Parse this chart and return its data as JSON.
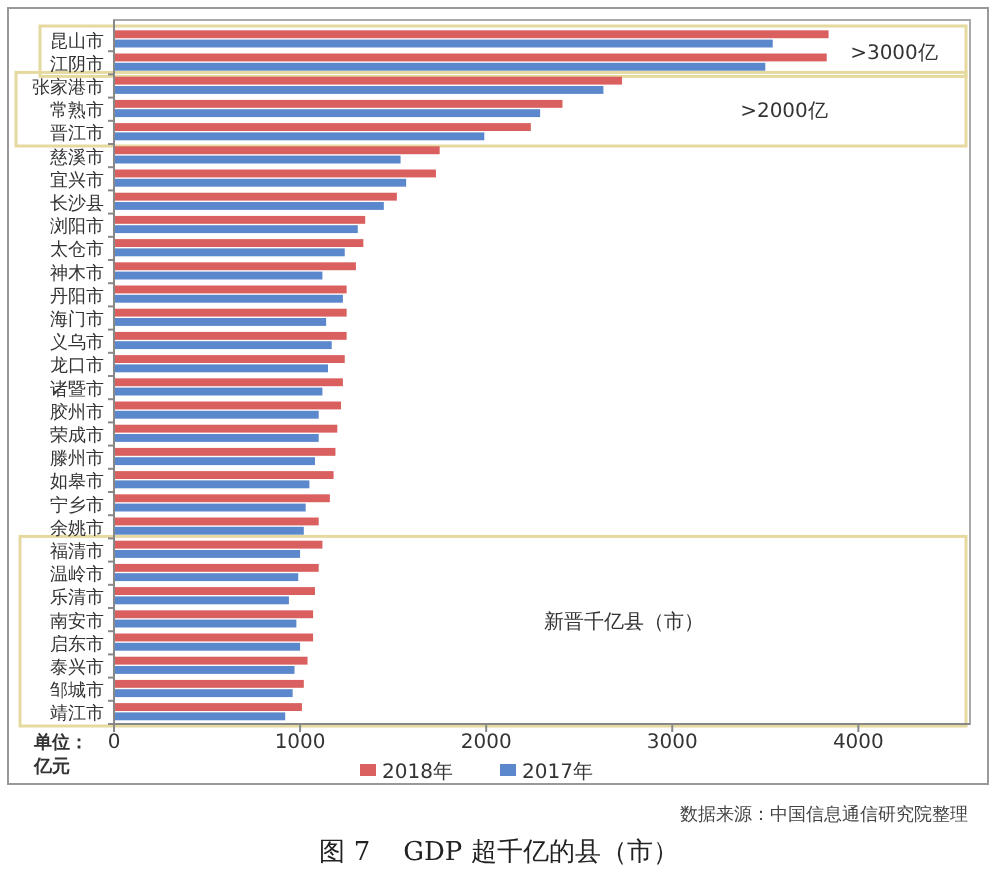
{
  "chart_data": {
    "type": "bar",
    "orientation": "horizontal",
    "title": "图 7    GDP 超千亿的县（市）",
    "categories": [
      "昆山市",
      "江阴市",
      "张家港市",
      "常熟市",
      "晋江市",
      "慈溪市",
      "宜兴市",
      "长沙县",
      "浏阳市",
      "太仓市",
      "神木市",
      "丹阳市",
      "海门市",
      "义乌市",
      "龙口市",
      "诸暨市",
      "胶州市",
      "荣成市",
      "滕州市",
      "如皋市",
      "宁乡市",
      "余姚市",
      "福清市",
      "温岭市",
      "乐清市",
      "南安市",
      "启东市",
      "泰兴市",
      "邹城市",
      "靖江市"
    ],
    "series": [
      {
        "name": "2018年",
        "color": "#d9605e",
        "values": [
          3840,
          3830,
          2730,
          2410,
          2240,
          1750,
          1730,
          1520,
          1350,
          1340,
          1300,
          1250,
          1250,
          1250,
          1240,
          1230,
          1220,
          1200,
          1190,
          1180,
          1160,
          1100,
          1120,
          1100,
          1080,
          1070,
          1070,
          1040,
          1020,
          1010
        ]
      },
      {
        "name": "2017年",
        "color": "#5b87cc",
        "values": [
          3540,
          3500,
          2630,
          2290,
          1990,
          1540,
          1570,
          1450,
          1310,
          1240,
          1120,
          1230,
          1140,
          1170,
          1150,
          1120,
          1100,
          1100,
          1080,
          1050,
          1030,
          1020,
          1000,
          990,
          940,
          980,
          1000,
          970,
          960,
          920
        ]
      }
    ],
    "xlim": [
      0,
      4600
    ],
    "xticks": [
      0,
      1000,
      2000,
      3000,
      4000
    ],
    "legend": "bottom",
    "annotations": [
      ">3000亿",
      ">2000亿",
      "新晋千亿县（市）",
      "单位：亿元",
      "数据来源：中国信息通信研究院整理"
    ]
  }
}
